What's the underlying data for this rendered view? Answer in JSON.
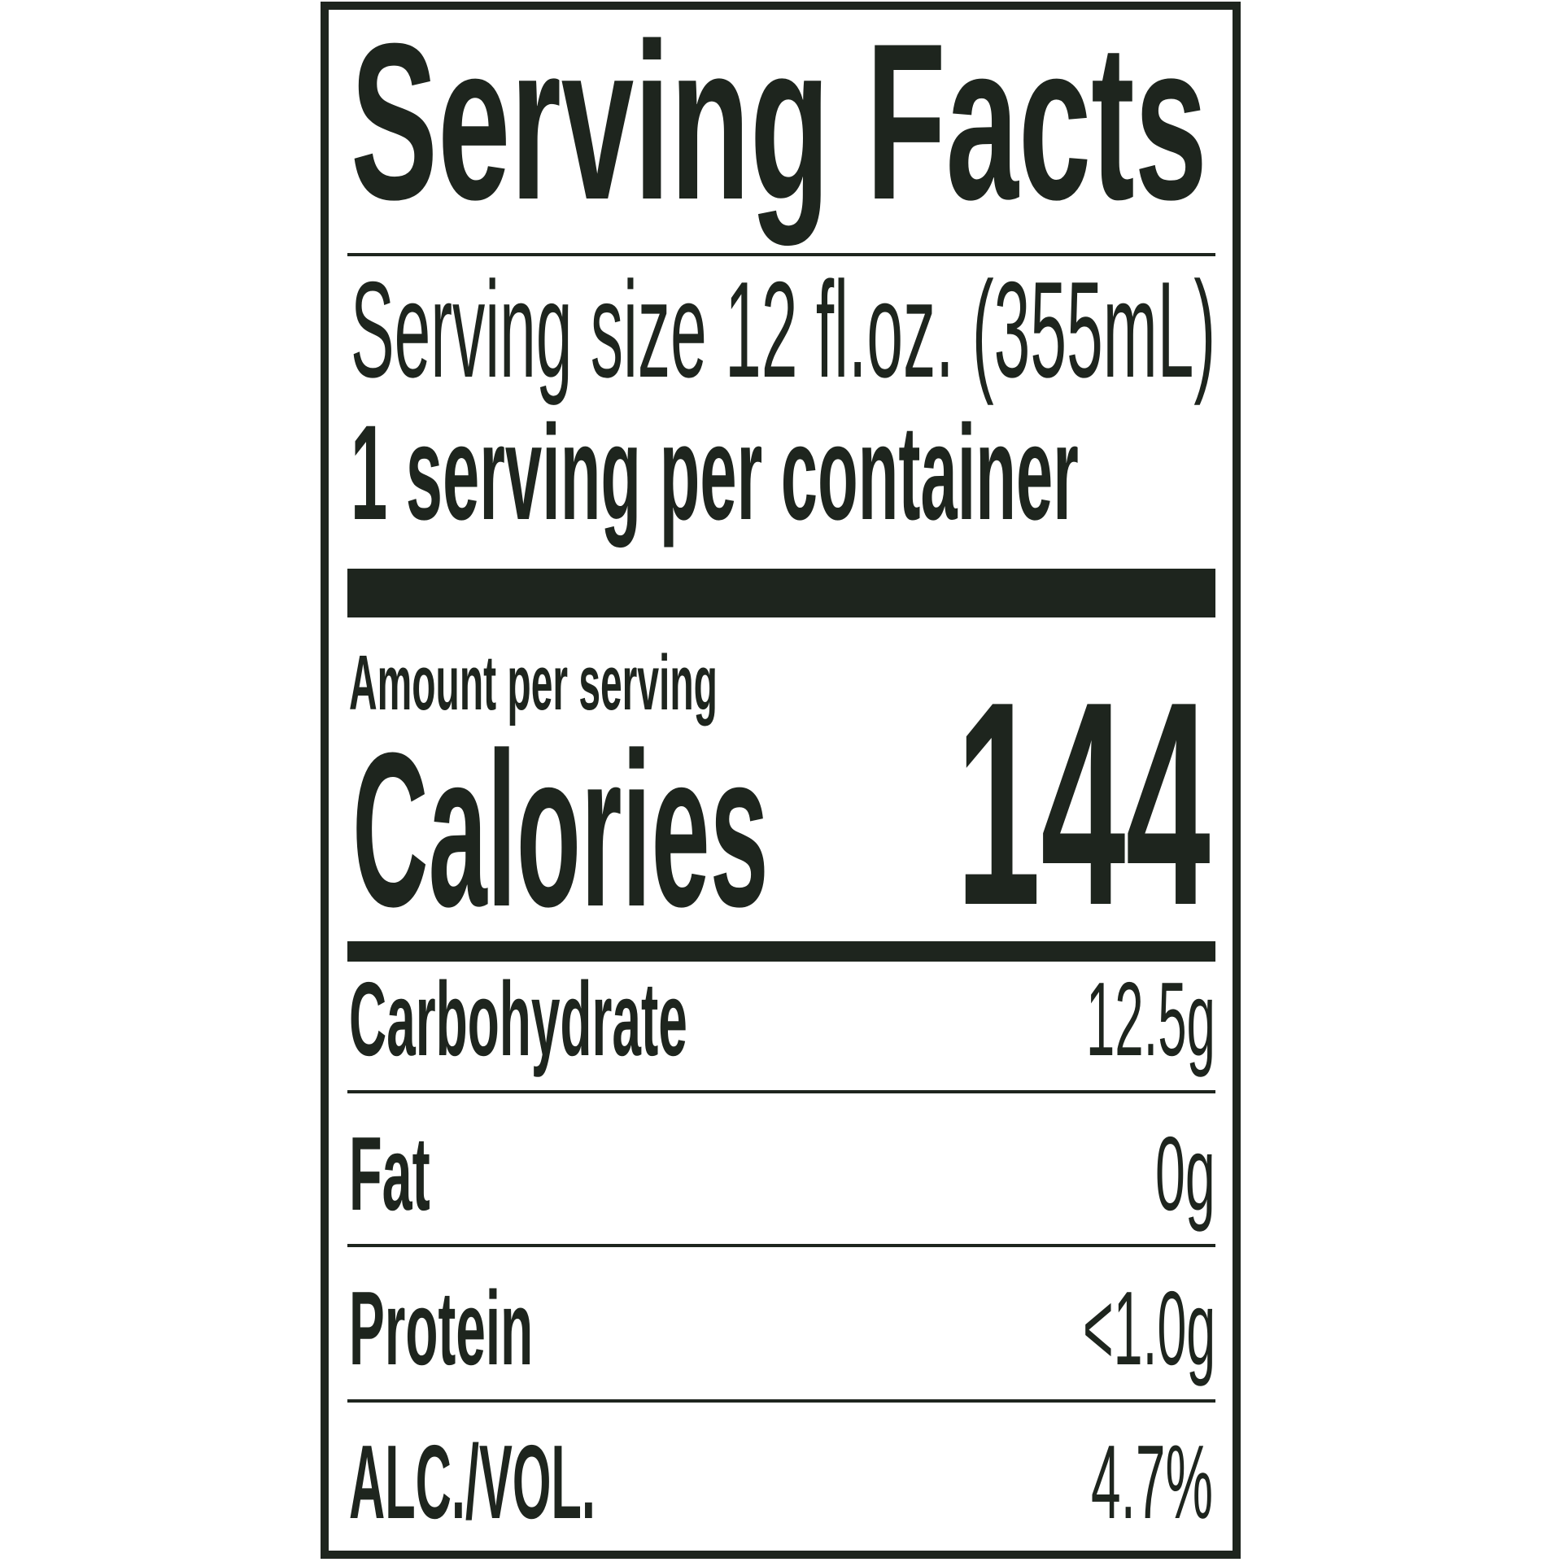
{
  "title": "Serving Facts",
  "serving_size": "Serving size 12 fl.oz. (355mL)",
  "servings_per_container": "1 serving per container",
  "amount_per_serving": "Amount per serving",
  "calories": {
    "label": "Calories",
    "value": "144"
  },
  "nutrients": [
    {
      "label": "Carbohydrate",
      "value": "12.5g"
    },
    {
      "label": "Fat",
      "value": "0g"
    },
    {
      "label": "Protein",
      "value": "<1.0g"
    },
    {
      "label": "ALC./VOL.",
      "value": "4.7%"
    }
  ],
  "colors": {
    "ink": "#1e251e",
    "background": "#ffffff"
  }
}
